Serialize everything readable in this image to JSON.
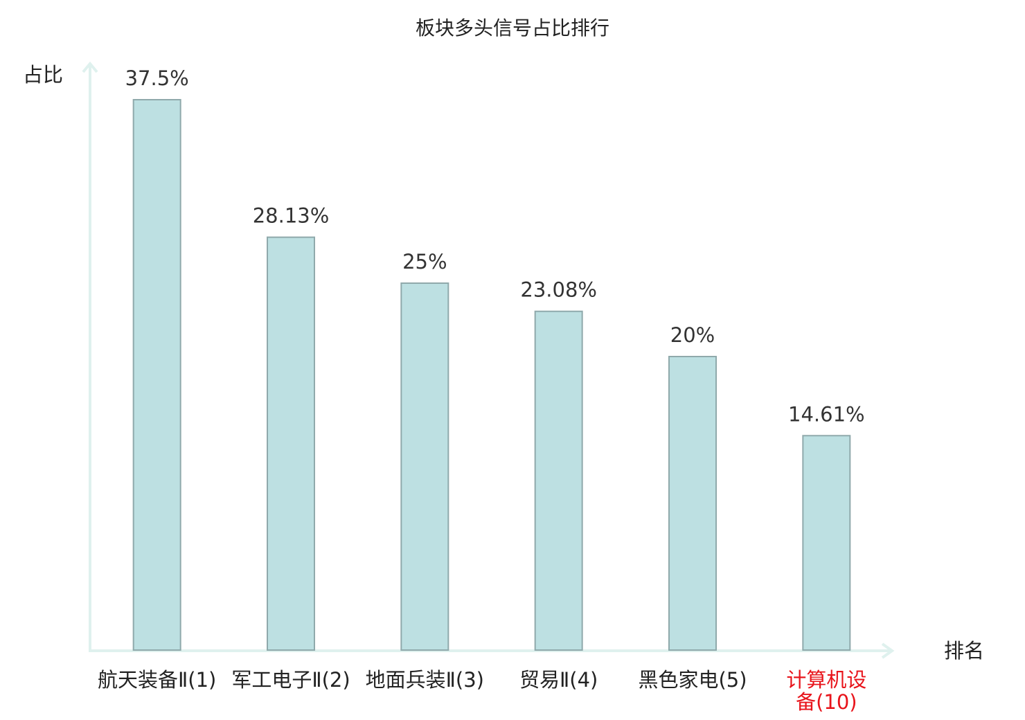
{
  "chart_data": {
    "type": "bar",
    "title": "板块多头信号占比排行",
    "y_label": "占比",
    "x_label": "排名",
    "categories": [
      "航天装备Ⅱ(1)",
      "军工电子Ⅱ(2)",
      "地面兵装Ⅱ(3)",
      "贸易Ⅱ(4)",
      "黑色家电(5)",
      "计算机设备(10)"
    ],
    "values": [
      37.5,
      28.13,
      25,
      23.08,
      20,
      14.61
    ],
    "value_labels": [
      "37.5%",
      "28.13%",
      "25%",
      "23.08%",
      "20%",
      "14.61%"
    ],
    "color": "#bde0e2",
    "edge_color": "#8fa9ab",
    "category_label_colors": [
      "#222222",
      "#222222",
      "#222222",
      "#222222",
      "#222222",
      "#e8141b"
    ],
    "ylim": [
      0,
      40
    ],
    "grid": false
  }
}
